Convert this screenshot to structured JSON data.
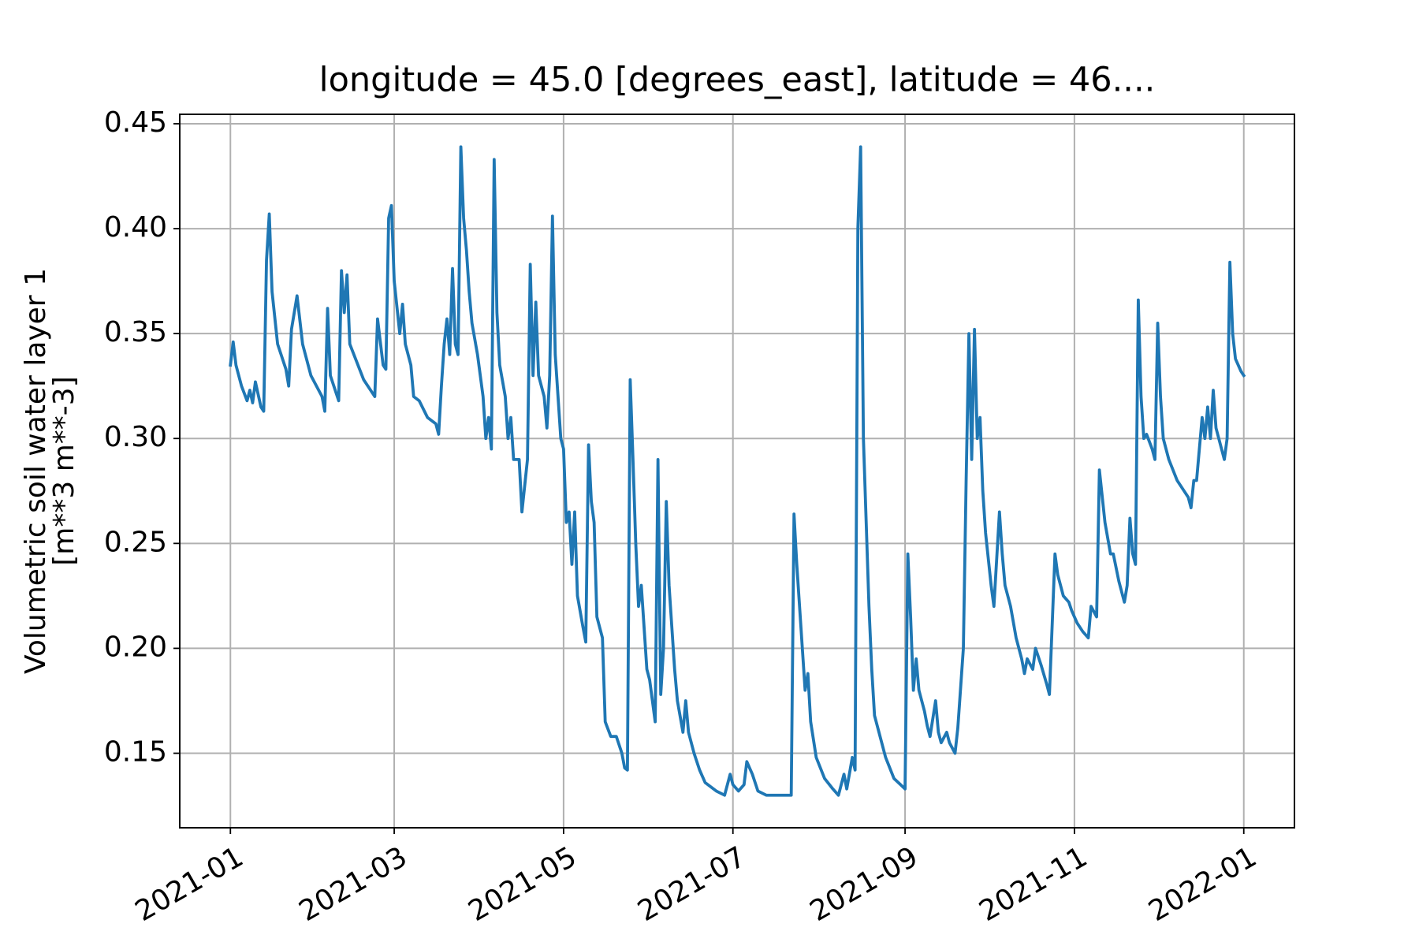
{
  "chart_data": {
    "type": "line",
    "title": "longitude = 45.0 [degrees_east], latitude = 46....",
    "ylabel": [
      "Volumetric soil water layer 1",
      "[m**3 m**-3]"
    ],
    "color": "#1f77b4",
    "grid": true,
    "xlim": [
      -18.25,
      383.25
    ],
    "xticks": [
      {
        "value": 0,
        "label": "2021-01"
      },
      {
        "value": 59,
        "label": "2021-03"
      },
      {
        "value": 120,
        "label": "2021-05"
      },
      {
        "value": 181,
        "label": "2021-07"
      },
      {
        "value": 243,
        "label": "2021-09"
      },
      {
        "value": 304,
        "label": "2021-11"
      },
      {
        "value": 365,
        "label": "2022-01"
      }
    ],
    "ylim": [
      0.1145,
      0.4545
    ],
    "yticks": [
      {
        "value": 0.15,
        "label": "0.15"
      },
      {
        "value": 0.2,
        "label": "0.20"
      },
      {
        "value": 0.25,
        "label": "0.25"
      },
      {
        "value": 0.3,
        "label": "0.30"
      },
      {
        "value": 0.35,
        "label": "0.35"
      },
      {
        "value": 0.4,
        "label": "0.40"
      },
      {
        "value": 0.45,
        "label": "0.45"
      }
    ],
    "x": [
      0,
      1,
      2,
      4,
      6,
      7,
      8,
      9,
      11,
      12,
      13,
      14,
      15,
      17,
      20,
      21,
      22,
      23,
      24,
      26,
      29,
      33,
      34,
      35,
      36,
      39,
      40,
      41,
      42,
      43,
      48,
      52,
      53,
      55,
      56,
      57,
      58,
      59,
      61,
      62,
      63,
      65,
      66,
      68,
      71,
      74,
      75,
      76,
      77,
      78,
      79,
      80,
      81,
      82,
      83,
      84,
      85,
      86,
      87,
      89,
      91,
      92,
      93,
      94,
      95,
      96,
      97,
      99,
      100,
      101,
      102,
      104,
      105,
      107,
      108,
      109,
      110,
      111,
      113,
      114,
      115,
      116,
      117,
      119,
      120,
      121,
      122,
      123,
      124,
      125,
      127,
      128,
      129,
      130,
      131,
      132,
      134,
      135,
      137,
      139,
      141,
      142,
      143,
      144,
      145,
      146,
      147,
      148,
      150,
      151,
      152,
      153,
      154,
      155,
      156,
      157,
      158,
      160,
      161,
      163,
      164,
      165,
      167,
      169,
      171,
      175,
      178,
      180,
      181,
      183,
      185,
      186,
      188,
      190,
      193,
      198,
      202,
      203,
      204,
      206,
      207,
      208,
      209,
      211,
      214,
      217,
      219,
      221,
      222,
      224,
      225,
      226,
      227,
      228,
      229,
      230,
      231,
      232,
      236,
      239,
      243,
      244,
      245,
      246,
      247,
      248,
      250,
      251,
      252,
      254,
      255,
      256,
      258,
      259,
      261,
      262,
      264,
      265,
      266,
      267,
      268,
      269,
      270,
      271,
      272,
      274,
      275,
      277,
      278,
      279,
      281,
      283,
      285,
      286,
      287,
      289,
      290,
      292,
      294,
      295,
      297,
      298,
      300,
      302,
      303,
      305,
      307,
      309,
      310,
      312,
      313,
      315,
      317,
      318,
      320,
      322,
      323,
      324,
      325,
      326,
      327,
      328,
      329,
      330,
      332,
      333,
      334,
      335,
      336,
      338,
      341,
      343,
      345,
      346,
      347,
      348,
      350,
      351,
      352,
      353,
      354,
      355,
      357,
      358,
      359,
      360,
      361,
      362,
      364,
      365
    ],
    "values": [
      0.335,
      0.346,
      0.335,
      0.325,
      0.318,
      0.323,
      0.317,
      0.327,
      0.315,
      0.313,
      0.385,
      0.407,
      0.37,
      0.345,
      0.333,
      0.325,
      0.352,
      0.36,
      0.368,
      0.345,
      0.33,
      0.32,
      0.313,
      0.362,
      0.33,
      0.318,
      0.38,
      0.36,
      0.378,
      0.345,
      0.328,
      0.32,
      0.357,
      0.335,
      0.333,
      0.405,
      0.411,
      0.375,
      0.35,
      0.364,
      0.345,
      0.335,
      0.32,
      0.318,
      0.31,
      0.307,
      0.302,
      0.325,
      0.345,
      0.357,
      0.34,
      0.381,
      0.345,
      0.34,
      0.439,
      0.405,
      0.39,
      0.37,
      0.355,
      0.34,
      0.32,
      0.3,
      0.31,
      0.295,
      0.433,
      0.36,
      0.335,
      0.32,
      0.3,
      0.31,
      0.29,
      0.29,
      0.265,
      0.29,
      0.383,
      0.33,
      0.365,
      0.33,
      0.32,
      0.305,
      0.33,
      0.406,
      0.34,
      0.3,
      0.295,
      0.26,
      0.265,
      0.24,
      0.265,
      0.225,
      0.21,
      0.203,
      0.297,
      0.27,
      0.26,
      0.215,
      0.205,
      0.165,
      0.158,
      0.158,
      0.15,
      0.143,
      0.142,
      0.328,
      0.29,
      0.25,
      0.22,
      0.23,
      0.19,
      0.185,
      0.175,
      0.165,
      0.29,
      0.178,
      0.2,
      0.27,
      0.23,
      0.19,
      0.175,
      0.16,
      0.175,
      0.16,
      0.15,
      0.142,
      0.136,
      0.132,
      0.13,
      0.14,
      0.135,
      0.132,
      0.135,
      0.146,
      0.14,
      0.132,
      0.13,
      0.13,
      0.13,
      0.264,
      0.24,
      0.2,
      0.18,
      0.188,
      0.165,
      0.148,
      0.138,
      0.133,
      0.13,
      0.14,
      0.133,
      0.148,
      0.142,
      0.4,
      0.439,
      0.3,
      0.26,
      0.22,
      0.19,
      0.168,
      0.148,
      0.138,
      0.133,
      0.245,
      0.215,
      0.18,
      0.195,
      0.18,
      0.17,
      0.163,
      0.158,
      0.175,
      0.16,
      0.155,
      0.16,
      0.155,
      0.15,
      0.162,
      0.2,
      0.28,
      0.35,
      0.29,
      0.352,
      0.3,
      0.31,
      0.275,
      0.255,
      0.23,
      0.22,
      0.265,
      0.245,
      0.23,
      0.22,
      0.205,
      0.195,
      0.188,
      0.195,
      0.19,
      0.2,
      0.192,
      0.183,
      0.178,
      0.245,
      0.235,
      0.225,
      0.222,
      0.218,
      0.212,
      0.208,
      0.205,
      0.22,
      0.215,
      0.285,
      0.26,
      0.245,
      0.245,
      0.232,
      0.222,
      0.23,
      0.262,
      0.245,
      0.24,
      0.366,
      0.32,
      0.3,
      0.302,
      0.295,
      0.29,
      0.355,
      0.32,
      0.3,
      0.29,
      0.28,
      0.276,
      0.272,
      0.267,
      0.28,
      0.28,
      0.31,
      0.3,
      0.315,
      0.3,
      0.323,
      0.305,
      0.295,
      0.29,
      0.3,
      0.384,
      0.35,
      0.338,
      0.332,
      0.33
    ]
  }
}
